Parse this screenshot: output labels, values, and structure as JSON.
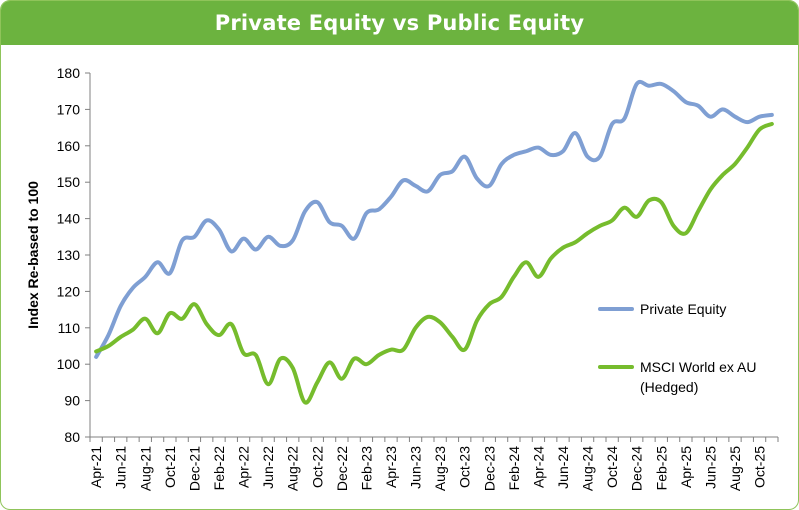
{
  "chart_data": {
    "type": "line",
    "title": "Private Equity vs Public Equity",
    "xlabel": "",
    "ylabel": "Index Re-based to 100",
    "ylim": [
      80,
      180
    ],
    "yticks": [
      80,
      90,
      100,
      110,
      120,
      130,
      140,
      150,
      160,
      170,
      180
    ],
    "xticks": [
      "Apr-21",
      "Jun-21",
      "Aug-21",
      "Oct-21",
      "Dec-21",
      "Feb-22",
      "Apr-22",
      "Jun-22",
      "Aug-22",
      "Oct-22",
      "Dec-22",
      "Feb-23",
      "Apr-23",
      "Jun-23",
      "Aug-23",
      "Oct-23",
      "Dec-23",
      "Feb-24",
      "Apr-24",
      "Jun-24",
      "Aug-24",
      "Oct-24",
      "Dec-24",
      "Feb-25",
      "Apr-25",
      "Jun-25",
      "Aug-25",
      "Oct-25"
    ],
    "grid": false,
    "legend_position": "right",
    "series": [
      {
        "name": "Private Equity",
        "color": "#7f9fd3",
        "values": [
          102,
          108,
          116,
          121,
          124,
          128,
          125,
          134,
          135,
          139.5,
          137,
          131,
          134.5,
          131.5,
          135,
          132.5,
          134,
          142,
          144.5,
          139,
          138,
          134.5,
          141.5,
          142.5,
          146,
          150.5,
          149,
          147.5,
          152,
          153,
          157,
          151,
          149,
          155,
          157.5,
          158.5,
          159.5,
          157.5,
          158.5,
          163.5,
          157,
          157,
          166,
          167.5,
          177,
          176.5,
          177,
          175,
          172,
          171,
          168,
          170,
          168,
          166.5,
          168,
          168.5
        ]
      },
      {
        "name": "MSCI World ex AU\n(Hedged)",
        "color": "#76bc2d",
        "values": [
          103.5,
          105,
          107.5,
          109.5,
          112.5,
          108.5,
          114,
          112.5,
          116.5,
          111,
          108,
          111,
          103,
          102.5,
          94.5,
          101.5,
          99,
          89.5,
          95,
          100.5,
          96,
          101.5,
          100,
          102.5,
          104,
          104,
          110,
          113,
          111.5,
          107.5,
          104,
          112,
          116.5,
          118.5,
          124,
          128,
          124,
          129,
          132,
          133.5,
          136,
          138,
          139.5,
          143,
          140.5,
          145,
          144.5,
          138,
          136,
          142,
          148,
          152,
          155,
          159.5,
          164.5,
          166
        ]
      }
    ]
  }
}
